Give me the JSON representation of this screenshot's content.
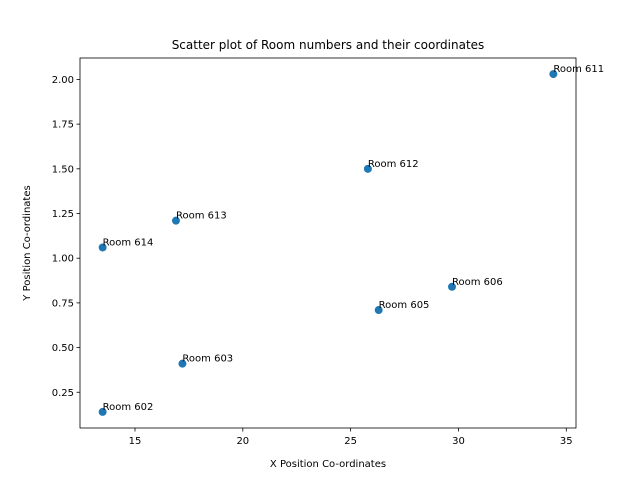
{
  "chart_data": {
    "type": "scatter",
    "title": "Scatter plot of Room numbers and their coordinates",
    "xlabel": "X Position Co-ordinates",
    "ylabel": "Y Position Co-ordinates",
    "xlim": [
      12.45,
      35.45
    ],
    "ylim": [
      0.05,
      2.12
    ],
    "xticks": [
      15,
      20,
      25,
      30,
      35
    ],
    "yticks": [
      0.25,
      0.5,
      0.75,
      1.0,
      1.25,
      1.5,
      1.75,
      2.0
    ],
    "ytick_labels": [
      "0.25",
      "0.50",
      "0.75",
      "1.00",
      "1.25",
      "1.50",
      "1.75",
      "2.00"
    ],
    "grid": false,
    "marker_color": "#1f77b4",
    "points": [
      {
        "label": "Room 611",
        "x": 34.4,
        "y": 2.03
      },
      {
        "label": "Room 612",
        "x": 25.8,
        "y": 1.5
      },
      {
        "label": "Room 613",
        "x": 16.9,
        "y": 1.21
      },
      {
        "label": "Room 614",
        "x": 13.5,
        "y": 1.06
      },
      {
        "label": "Room 606",
        "x": 29.7,
        "y": 0.84
      },
      {
        "label": "Room 605",
        "x": 26.3,
        "y": 0.71
      },
      {
        "label": "Room 603",
        "x": 17.2,
        "y": 0.41
      },
      {
        "label": "Room 602",
        "x": 13.5,
        "y": 0.14
      }
    ]
  }
}
